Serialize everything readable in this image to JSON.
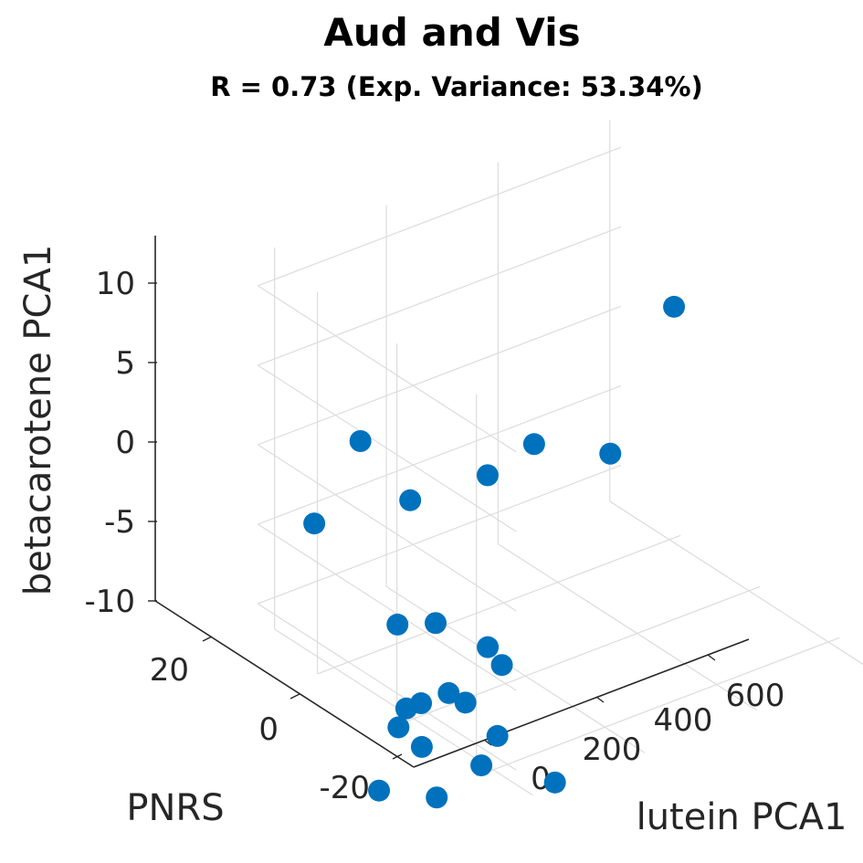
{
  "chart_data": {
    "type": "scatter3d",
    "title": "Aud and Vis",
    "subtitle": "R = 0.73 (Exp. Variance: 53.34%)",
    "xlabel": "lutein PCA1",
    "ylabel": "PNRS",
    "zlabel": "betacarotene PCA1",
    "x_ticks": [
      "0",
      "200",
      "400",
      "600"
    ],
    "y_ticks": [
      "-20",
      "0",
      "20"
    ],
    "z_ticks": [
      "-10",
      "-5",
      "0",
      "5",
      "10"
    ],
    "marker_color": "#0072BD",
    "points": [
      {
        "lutein": 651,
        "pnrs": 26,
        "beta": 1
      },
      {
        "lutein": 365,
        "pnrs": 21,
        "beta": -3
      },
      {
        "lutein": 175,
        "pnrs": 38,
        "beta": -3
      },
      {
        "lutein": 175,
        "pnrs": 6,
        "beta": 0
      },
      {
        "lutein": 295,
        "pnrs": -8,
        "beta": 2
      },
      {
        "lutein": 72,
        "pnrs": 11,
        "beta": -1
      },
      {
        "lutein": 7,
        "pnrs": 26,
        "beta": -4
      },
      {
        "lutein": 35,
        "pnrs": 9,
        "beta": -8
      },
      {
        "lutein": 25,
        "pnrs": -2,
        "beta": -6
      },
      {
        "lutein": 97,
        "pnrs": -5,
        "beta": -8
      },
      {
        "lutein": 165,
        "pnrs": 1,
        "beta": -11
      },
      {
        "lutein": 84,
        "pnrs": 3,
        "beta": -12
      },
      {
        "lutein": 114,
        "pnrs": 3,
        "beta": -13
      },
      {
        "lutein": 63,
        "pnrs": 7,
        "beta": -13
      },
      {
        "lutein": 36,
        "pnrs": -16,
        "beta": -11
      },
      {
        "lutein": 65,
        "pnrs": 11,
        "beta": -14
      },
      {
        "lutein": 51,
        "pnrs": 11,
        "beta": -15
      },
      {
        "lutein": 43,
        "pnrs": 4,
        "beta": -15
      },
      {
        "lutein": 2,
        "pnrs": 9,
        "beta": -18
      },
      {
        "lutein": 27,
        "pnrs": -2,
        "beta": -17
      },
      {
        "lutein": 50,
        "pnrs": -10,
        "beta": -14
      },
      {
        "lutein": 75,
        "pnrs": -25,
        "beta": -13
      }
    ]
  }
}
